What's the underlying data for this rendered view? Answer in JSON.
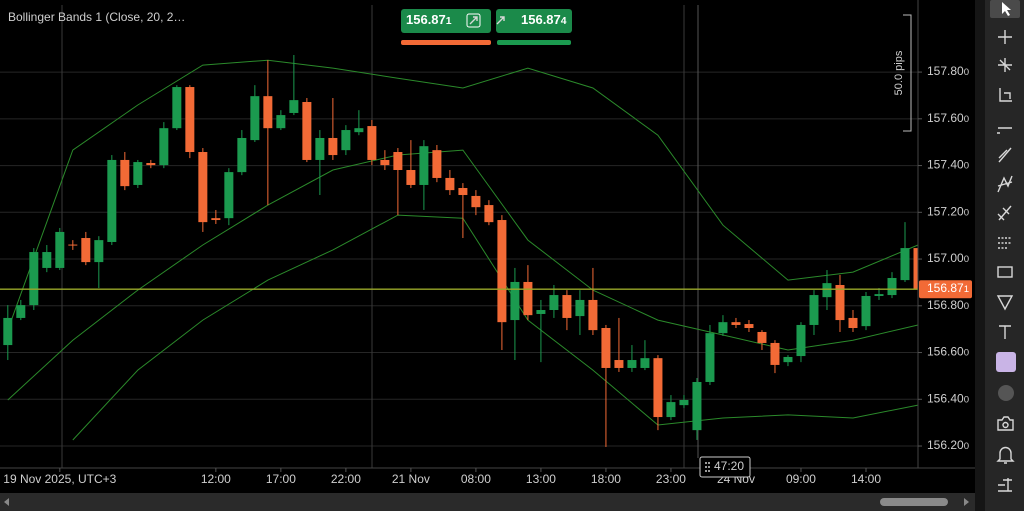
{
  "indicator_label": "Bollinger Bands 1 (Close, 20, 2…",
  "quote": {
    "bid": 156.871,
    "ask": 156.874
  },
  "ruler_label": "50.0 pips",
  "timer": "47:20",
  "chart_data": {
    "type": "candlestick",
    "up_color": "#1b9a4f",
    "down_color": "#f26a36",
    "xlim": [
      -0.6,
      70
    ],
    "ylim": [
      156.106,
      158.087
    ],
    "yticks": [
      {
        "value": 156.2,
        "label": "156.200"
      },
      {
        "value": 156.4,
        "label": "156.400"
      },
      {
        "value": 156.6,
        "label": "156.600"
      },
      {
        "value": 156.8,
        "label": "156.800"
      },
      {
        "value": 157,
        "label": "157.000"
      },
      {
        "value": 157.2,
        "label": "157.200"
      },
      {
        "value": 157.4,
        "label": "157.400"
      },
      {
        "value": 157.6,
        "label": "157.600"
      },
      {
        "value": 157.8,
        "label": "157.800"
      }
    ],
    "xticks": [
      {
        "value": 4,
        "label": "19 Nov 2025, UTC+3"
      },
      {
        "value": 16,
        "label": "12:00"
      },
      {
        "value": 21,
        "label": "17:00"
      },
      {
        "value": 26,
        "label": "22:00"
      },
      {
        "value": 31,
        "label": "21 Nov"
      },
      {
        "value": 36,
        "label": "08:00"
      },
      {
        "value": 41,
        "label": "13:00"
      },
      {
        "value": 46,
        "label": "18:00"
      },
      {
        "value": 51,
        "label": "23:00"
      },
      {
        "value": 56,
        "label": "24 Nov"
      },
      {
        "value": 61,
        "label": "09:00"
      },
      {
        "value": 66,
        "label": "14:00"
      }
    ],
    "grid": true,
    "current_price": 156.871,
    "current_price_color": "#9aa82a",
    "open": [
      156.632,
      156.748,
      156.803,
      156.962,
      156.962,
      157.062,
      157.09,
      156.987,
      157.073,
      157.424,
      157.317,
      157.411,
      157.402,
      157.56,
      157.736,
      157.458,
      157.175,
      157.175,
      157.372,
      157.509,
      157.697,
      157.56,
      157.625,
      157.672,
      157.424,
      157.518,
      157.466,
      157.543,
      157.569,
      157.424,
      157.458,
      157.381,
      157.317,
      157.466,
      157.347,
      157.304,
      157.27,
      157.231,
      157.167,
      156.739,
      156.902,
      156.765,
      156.782,
      156.846,
      156.756,
      156.825,
      156.705,
      156.568,
      156.534,
      156.534,
      156.576,
      156.324,
      156.375,
      156.268,
      156.474,
      156.683,
      156.73,
      156.722,
      156.688,
      156.641,
      156.559,
      156.585,
      156.718,
      156.837,
      156.889,
      156.748,
      156.713,
      156.842,
      156.846,
      156.91,
      157.047
    ],
    "high": [
      156.803,
      156.825,
      157.047,
      157.06,
      157.133,
      157.081,
      157.116,
      157.098,
      157.445,
      157.458,
      157.424,
      157.424,
      157.586,
      157.744,
      157.744,
      157.475,
      157.21,
      157.389,
      157.552,
      157.744,
      157.851,
      157.637,
      157.873,
      157.689,
      157.552,
      157.689,
      157.573,
      157.637,
      157.595,
      157.466,
      157.475,
      157.509,
      157.509,
      157.488,
      157.381,
      157.325,
      157.295,
      157.252,
      157.188,
      156.962,
      156.974,
      156.825,
      156.889,
      156.867,
      156.867,
      156.962,
      156.718,
      156.748,
      156.632,
      156.653,
      156.589,
      156.418,
      156.418,
      156.491,
      156.718,
      156.76,
      156.748,
      156.739,
      156.696,
      156.653,
      156.589,
      156.73,
      156.867,
      156.953,
      156.932,
      156.782,
      156.859,
      156.876,
      156.944,
      157.158,
      157.06
    ],
    "low": [
      156.568,
      156.739,
      156.782,
      156.944,
      156.953,
      157.039,
      156.974,
      156.876,
      157.06,
      157.295,
      157.304,
      157.389,
      157.389,
      157.552,
      157.432,
      157.116,
      157.15,
      157.145,
      157.359,
      157.501,
      157.231,
      157.552,
      157.616,
      157.415,
      157.274,
      157.424,
      157.445,
      157.53,
      157.402,
      157.381,
      157.188,
      157.304,
      157.21,
      157.329,
      157.274,
      157.09,
      157.188,
      157.145,
      156.611,
      156.568,
      156.739,
      156.559,
      156.748,
      156.696,
      156.675,
      156.675,
      156.196,
      156.517,
      156.517,
      156.525,
      156.268,
      156.311,
      156.363,
      156.226,
      156.461,
      156.671,
      156.705,
      156.688,
      156.611,
      156.512,
      156.542,
      156.559,
      156.675,
      156.782,
      156.688,
      156.688,
      156.696,
      156.825,
      156.833,
      156.902,
      156.825
    ],
    "close": [
      156.748,
      156.803,
      157.03,
      157.03,
      157.116,
      157.058,
      156.987,
      157.081,
      157.424,
      157.312,
      157.415,
      157.402,
      157.56,
      157.736,
      157.458,
      157.158,
      157.167,
      157.372,
      157.518,
      157.697,
      157.56,
      157.616,
      157.68,
      157.424,
      157.518,
      157.445,
      157.552,
      157.56,
      157.424,
      157.402,
      157.381,
      157.317,
      157.483,
      157.347,
      157.295,
      157.274,
      157.222,
      157.158,
      156.73,
      156.902,
      156.76,
      156.782,
      156.846,
      156.748,
      156.825,
      156.696,
      156.534,
      156.534,
      156.568,
      156.576,
      156.324,
      156.388,
      156.397,
      156.474,
      156.683,
      156.73,
      156.718,
      156.705,
      156.641,
      156.547,
      156.581,
      156.718,
      156.846,
      156.897,
      156.739,
      156.705,
      156.842,
      156.85,
      156.919,
      157.047,
      156.872
    ],
    "series": [
      {
        "color": "#2b8a2b",
        "x": [
          0,
          5,
          10,
          15,
          20,
          25,
          30,
          35,
          40,
          45,
          50,
          55,
          60,
          65,
          70
        ],
        "values": [
          156.696,
          157.466,
          157.659,
          157.83,
          157.851,
          157.817,
          157.774,
          157.732,
          157.817,
          157.732,
          157.53,
          157.145,
          156.91,
          156.944,
          157.06
        ]
      },
      {
        "color": "#2b8a2b",
        "x": [
          0,
          5,
          10,
          15,
          20,
          25,
          30,
          35,
          40,
          45,
          50,
          55,
          60,
          65,
          70
        ],
        "values": [
          156.397,
          156.653,
          156.867,
          157.06,
          157.231,
          157.381,
          157.445,
          157.466,
          157.081,
          156.867,
          156.739,
          156.675,
          156.611,
          156.653,
          156.718
        ]
      },
      {
        "color": "#2b8a2b",
        "x": [
          0,
          5,
          10,
          15,
          20,
          25,
          30,
          35,
          40,
          45,
          50,
          55,
          60,
          65,
          70
        ],
        "values": [
          null,
          156.226,
          156.525,
          156.739,
          156.91,
          157.039,
          157.188,
          157.175,
          156.739,
          156.525,
          156.29,
          156.32,
          156.333,
          156.32,
          156.375
        ]
      }
    ]
  }
}
